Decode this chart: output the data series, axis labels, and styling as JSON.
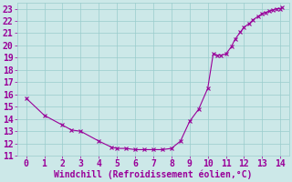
{
  "xlabel": "Windchill (Refroidissement éolien,°C)",
  "xlim": [
    -0.5,
    14.5
  ],
  "ylim": [
    11,
    23.5
  ],
  "yticks": [
    11,
    12,
    13,
    14,
    15,
    16,
    17,
    18,
    19,
    20,
    21,
    22,
    23
  ],
  "xticks": [
    0,
    1,
    2,
    3,
    4,
    5,
    6,
    7,
    8,
    9,
    10,
    11,
    12,
    13,
    14
  ],
  "x": [
    0,
    1,
    2,
    2.5,
    3,
    4,
    4.7,
    5,
    5.5,
    6,
    6.5,
    7,
    7.5,
    8,
    8.5,
    9,
    9.5,
    10,
    10.3,
    10.5,
    10.7,
    11,
    11.3,
    11.5,
    11.8,
    12,
    12.3,
    12.5,
    12.8,
    13,
    13.2,
    13.4,
    13.6,
    13.8,
    14,
    14.1
  ],
  "y": [
    15.7,
    14.3,
    13.5,
    13.1,
    13.0,
    12.2,
    11.7,
    11.6,
    11.6,
    11.5,
    11.5,
    11.5,
    11.5,
    11.6,
    12.2,
    13.8,
    14.8,
    16.5,
    19.3,
    19.2,
    19.2,
    19.3,
    19.9,
    20.5,
    21.1,
    21.5,
    21.8,
    22.1,
    22.4,
    22.6,
    22.7,
    22.8,
    22.9,
    23.0,
    23.0,
    23.1
  ],
  "line_color": "#990099",
  "marker": "x",
  "marker_color": "#990099",
  "bg_color": "#cce8e8",
  "grid_color": "#99cccc",
  "tick_color": "#990099",
  "label_color": "#990099",
  "font_size": 7.0,
  "font_family": "monospace"
}
